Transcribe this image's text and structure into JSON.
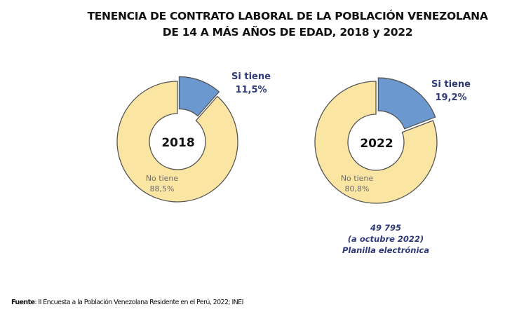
{
  "chart_data": [
    {
      "type": "pie",
      "subtype": "donut",
      "center_label": "2018",
      "categories": [
        "Si tiene",
        "No tiene"
      ],
      "values": [
        11.5,
        88.5
      ],
      "labels": [
        "11,5%",
        "88,5%"
      ],
      "colors": [
        "#6a98cf",
        "#fbe5a3"
      ],
      "exploded": [
        "Si tiene"
      ]
    },
    {
      "type": "pie",
      "subtype": "donut",
      "center_label": "2022",
      "categories": [
        "Si tiene",
        "No tiene"
      ],
      "values": [
        19.2,
        80.8
      ],
      "labels": [
        "19,2%",
        "80,8%"
      ],
      "colors": [
        "#6a98cf",
        "#fbe5a3"
      ],
      "exploded": [
        "Si tiene"
      ]
    }
  ],
  "title_line1": "TENENCIA DE CONTRATO LABORAL DE LA POBLACIÓN VENEZOLANA",
  "title_line2": "DE 14 A MÁS AÑOS DE EDAD, 2018 y 2022",
  "note": {
    "line1": "49 795",
    "line2": "(a octubre 2022)",
    "line3": "Planilla electrónica"
  },
  "source": {
    "label": "Fuente",
    "text": ": II Encuesta a la Población Venezolana Residente en el Perú, 2022; INEI"
  },
  "colors": {
    "outline": "#555555",
    "label_navy": "#2f3a78"
  }
}
